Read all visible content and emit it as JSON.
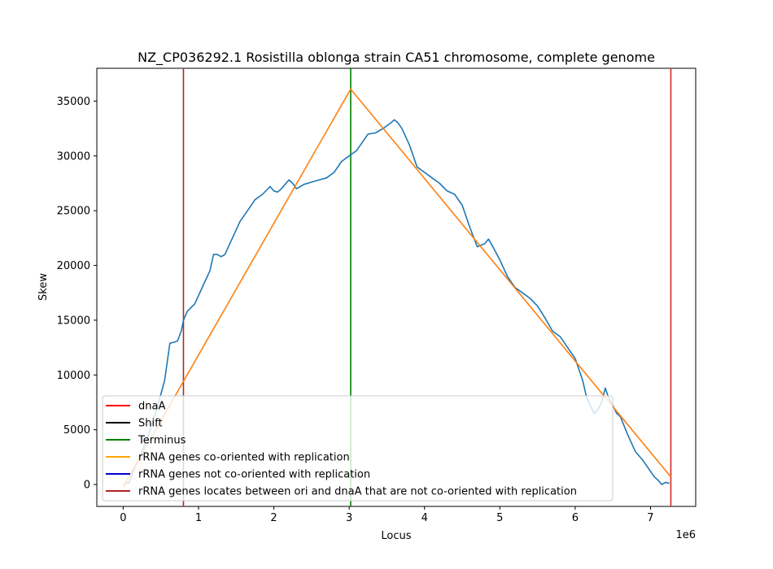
{
  "chart_data": {
    "type": "line",
    "title": "NZ_CP036292.1 Rosistilla oblonga strain CA51 chromosome, complete genome",
    "xlabel": "Locus",
    "ylabel": "Skew",
    "x_offset_label": "1e6",
    "xlim": [
      -350000,
      7600000
    ],
    "ylim": [
      -2000,
      38000
    ],
    "x_ticks": [
      0,
      1000000,
      2000000,
      3000000,
      4000000,
      5000000,
      6000000,
      7000000
    ],
    "x_tick_labels": [
      "0",
      "1",
      "2",
      "3",
      "4",
      "5",
      "6",
      "7"
    ],
    "y_ticks": [
      0,
      5000,
      10000,
      15000,
      20000,
      25000,
      30000,
      35000
    ],
    "y_tick_labels": [
      "0",
      "5000",
      "10000",
      "15000",
      "20000",
      "25000",
      "30000",
      "35000"
    ],
    "grid": false,
    "legend_position": "lower-left",
    "series": [
      {
        "key": "skew",
        "color": "#1f77b4",
        "x": [
          0,
          80000,
          150000,
          250000,
          350000,
          450000,
          550000,
          620000,
          680000,
          720000,
          770000,
          800000,
          850000,
          950000,
          1050000,
          1150000,
          1200000,
          1250000,
          1300000,
          1350000,
          1450000,
          1550000,
          1650000,
          1750000,
          1850000,
          1950000,
          2000000,
          2050000,
          2100000,
          2150000,
          2200000,
          2250000,
          2300000,
          2350000,
          2400000,
          2500000,
          2600000,
          2700000,
          2800000,
          2900000,
          3000000,
          3100000,
          3150000,
          3250000,
          3350000,
          3450000,
          3550000,
          3600000,
          3650000,
          3700000,
          3800000,
          3900000,
          4000000,
          4100000,
          4200000,
          4300000,
          4400000,
          4500000,
          4600000,
          4700000,
          4800000,
          4850000,
          4900000,
          5000000,
          5100000,
          5200000,
          5300000,
          5400000,
          5500000,
          5600000,
          5700000,
          5800000,
          5900000,
          6000000,
          6100000,
          6150000,
          6200000,
          6250000,
          6300000,
          6350000,
          6400000,
          6450000,
          6500000,
          6550000,
          6600000,
          6700000,
          6800000,
          6900000,
          7000000,
          7050000,
          7100000,
          7150000,
          7200000,
          7250000
        ],
        "y": [
          0,
          200,
          1500,
          3000,
          4800,
          7000,
          9500,
          12900,
          13000,
          13100,
          14000,
          15000,
          15800,
          16500,
          18000,
          19500,
          21000,
          21000,
          20800,
          21000,
          22500,
          24000,
          25000,
          26000,
          26500,
          27200,
          26800,
          26700,
          27000,
          27400,
          27800,
          27500,
          27000,
          27200,
          27400,
          27600,
          27800,
          28000,
          28500,
          29500,
          30000,
          30500,
          31000,
          32000,
          32100,
          32500,
          33000,
          33300,
          33000,
          32500,
          31000,
          29000,
          28500,
          28000,
          27500,
          26800,
          26500,
          25500,
          23500,
          21700,
          22000,
          22400,
          21800,
          20500,
          19000,
          18000,
          17500,
          17000,
          16300,
          15200,
          14000,
          13500,
          12500,
          11500,
          9500,
          8000,
          7200,
          6500,
          6800,
          7500,
          8800,
          7800,
          7200,
          6500,
          6200,
          4500,
          3000,
          2200,
          1200,
          700,
          400,
          0,
          200,
          100
        ]
      },
      {
        "key": "rrna-co-oriented-line",
        "color": "#ff7f0e",
        "x": [
          0,
          3020000,
          7270000
        ],
        "y": [
          -200,
          36100,
          700
        ]
      }
    ],
    "vertical_lines": [
      {
        "key": "dnaA",
        "x": 7270000,
        "color": "#d62728"
      },
      {
        "key": "terminus",
        "x": 3020000,
        "color": "#008000"
      },
      {
        "key": "rrna-between-ori-dnaA",
        "x": 800000,
        "color": "#a52a2a"
      }
    ],
    "legend": [
      {
        "label": "dnaA",
        "color": "#ff0000"
      },
      {
        "label": "Shift",
        "color": "#000000"
      },
      {
        "label": "Terminus",
        "color": "#008000"
      },
      {
        "label": "rRNA genes co-oriented with replication",
        "color": "#ffa500"
      },
      {
        "label": "rRNA genes not co-oriented with replication",
        "color": "#0000cd"
      },
      {
        "label": "rRNA genes locates between ori and dnaA that are not co-oriented with replication",
        "color": "#b22222"
      }
    ]
  }
}
